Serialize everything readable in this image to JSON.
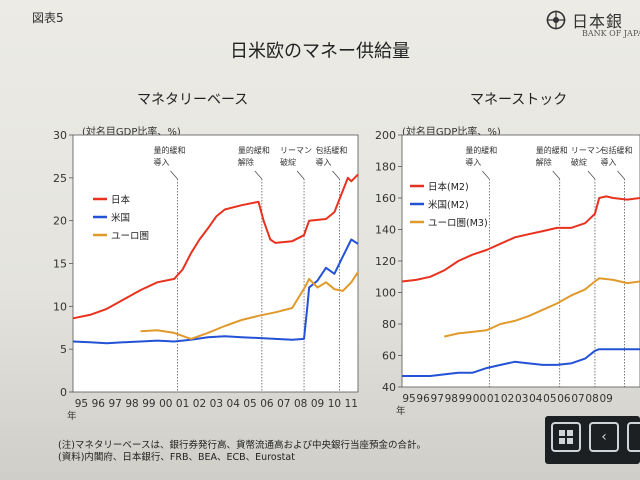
{
  "figure_label": "図表5",
  "logo": {
    "jp": "日本銀",
    "en": "BANK OF JAPAN"
  },
  "title": "日米欧のマネー供給量",
  "notes": [
    "(注)マネタリーベースは、銀行券発行高、貨幣流通高および中央銀行当座預金の合計。",
    "(資料)内閣府、日本銀行、FRB、BEA、ECB、Eurostat"
  ],
  "colors": {
    "japan": "#e8321f",
    "us": "#2452d6",
    "euro": "#e09a2c"
  },
  "nav": {
    "grid_icon": "grid-icon",
    "prev_icon": "chevron-left-icon",
    "next_icon": "chevron-right-icon",
    "prev_glyph": "‹",
    "next_glyph": "›"
  },
  "chart_data": [
    {
      "type": "line",
      "title": "マネタリーベース",
      "unit_label": "(対名目GDP比率、%)",
      "ylim": [
        0,
        30
      ],
      "yticks": [
        "0",
        "5",
        "10",
        "15",
        "20",
        "25",
        "30"
      ],
      "x_start": 1995,
      "x_end": 2011.9,
      "x_ticks": [
        "95",
        "96",
        "97",
        "98",
        "99",
        "00",
        "01",
        "02",
        "03",
        "04",
        "05",
        "06",
        "07",
        "08",
        "09",
        "10",
        "11"
      ],
      "x_unit": "年",
      "events": [
        {
          "label1": "量的緩和",
          "label2": "導入",
          "x": 2001.2
        },
        {
          "label1": "量的緩和",
          "label2": "解除",
          "x": 2006.2
        },
        {
          "label1": "リーマン",
          "label2": "破綻",
          "x": 2008.7
        },
        {
          "label1": "包括緩和",
          "label2": "導入",
          "x": 2010.8
        }
      ],
      "legend": [
        {
          "name": "日本",
          "series": 0
        },
        {
          "name": "米国",
          "series": 1
        },
        {
          "name": "ユーロ圏",
          "series": 2
        }
      ],
      "series": [
        {
          "name": "日本",
          "color": "#e8321f",
          "points": [
            [
              1995,
              8.6
            ],
            [
              1996,
              9.0
            ],
            [
              1997,
              9.7
            ],
            [
              1998,
              10.8
            ],
            [
              1999,
              11.9
            ],
            [
              2000,
              12.8
            ],
            [
              2001,
              13.2
            ],
            [
              2001.5,
              14.3
            ],
            [
              2002,
              16.2
            ],
            [
              2002.5,
              17.8
            ],
            [
              2003,
              19.1
            ],
            [
              2003.5,
              20.5
            ],
            [
              2004,
              21.3
            ],
            [
              2005,
              21.8
            ],
            [
              2006,
              22.2
            ],
            [
              2006.3,
              20.0
            ],
            [
              2006.7,
              17.8
            ],
            [
              2007,
              17.4
            ],
            [
              2008,
              17.6
            ],
            [
              2008.7,
              18.3
            ],
            [
              2009,
              20.0
            ],
            [
              2010,
              20.2
            ],
            [
              2010.5,
              21.0
            ],
            [
              2011,
              23.5
            ],
            [
              2011.3,
              25.0
            ],
            [
              2011.5,
              24.6
            ],
            [
              2011.9,
              25.4
            ]
          ]
        },
        {
          "name": "米国",
          "color": "#2452d6",
          "points": [
            [
              1995,
              5.9
            ],
            [
              1996,
              5.8
            ],
            [
              1997,
              5.7
            ],
            [
              1998,
              5.8
            ],
            [
              1999,
              5.9
            ],
            [
              2000,
              6.0
            ],
            [
              2001,
              5.9
            ],
            [
              2002,
              6.1
            ],
            [
              2003,
              6.4
            ],
            [
              2004,
              6.5
            ],
            [
              2005,
              6.4
            ],
            [
              2006,
              6.3
            ],
            [
              2007,
              6.2
            ],
            [
              2008,
              6.1
            ],
            [
              2008.7,
              6.2
            ],
            [
              2008.9,
              10.0
            ],
            [
              2009,
              12.2
            ],
            [
              2009.5,
              13.0
            ],
            [
              2010,
              14.5
            ],
            [
              2010.5,
              13.8
            ],
            [
              2011,
              15.8
            ],
            [
              2011.5,
              17.8
            ],
            [
              2011.9,
              17.3
            ]
          ]
        },
        {
          "name": "ユーロ圏",
          "color": "#e09a2c",
          "points": [
            [
              1999,
              7.1
            ],
            [
              2000,
              7.2
            ],
            [
              2001,
              6.9
            ],
            [
              2002,
              6.2
            ],
            [
              2003,
              6.9
            ],
            [
              2004,
              7.7
            ],
            [
              2005,
              8.4
            ],
            [
              2006,
              8.9
            ],
            [
              2007,
              9.3
            ],
            [
              2008,
              9.8
            ],
            [
              2008.8,
              12.4
            ],
            [
              2009,
              13.2
            ],
            [
              2009.5,
              12.2
            ],
            [
              2010,
              12.8
            ],
            [
              2010.5,
              12.0
            ],
            [
              2011,
              11.8
            ],
            [
              2011.5,
              12.8
            ],
            [
              2011.9,
              14.0
            ]
          ]
        }
      ]
    },
    {
      "type": "line",
      "title": "マネーストック",
      "unit_label": "(対名目GDP比率、%)",
      "ylim": [
        40,
        200
      ],
      "yticks": [
        "40",
        "60",
        "80",
        "100",
        "120",
        "140",
        "160",
        "180",
        "200"
      ],
      "x_start": 1995,
      "x_end": 2011.9,
      "x_ticks": [
        "95",
        "96",
        "97",
        "98",
        "99",
        "00",
        "01",
        "02",
        "03",
        "04",
        "05",
        "06",
        "07",
        "08",
        "09"
      ],
      "x_unit": "年",
      "events": [
        {
          "label1": "量的緩和",
          "label2": "導入",
          "x": 2001.2
        },
        {
          "label1": "量的緩和",
          "label2": "解除",
          "x": 2006.2
        },
        {
          "label1": "リーマン",
          "label2": "破綻",
          "x": 2008.7
        },
        {
          "label1": "包括緩和",
          "label2": "導入",
          "x": 2010.8
        }
      ],
      "legend": [
        {
          "name": "日本(M2)",
          "series": 0
        },
        {
          "name": "米国(M2)",
          "series": 1
        },
        {
          "name": "ユーロ圏(M3)",
          "series": 2
        }
      ],
      "series": [
        {
          "name": "日本(M2)",
          "color": "#e8321f",
          "points": [
            [
              1995,
              107
            ],
            [
              1996,
              108
            ],
            [
              1997,
              110
            ],
            [
              1998,
              114
            ],
            [
              1999,
              120
            ],
            [
              2000,
              124
            ],
            [
              2001,
              127
            ],
            [
              2002,
              131
            ],
            [
              2003,
              135
            ],
            [
              2004,
              137
            ],
            [
              2005,
              139
            ],
            [
              2006,
              141
            ],
            [
              2007,
              141
            ],
            [
              2008,
              144
            ],
            [
              2008.7,
              150
            ],
            [
              2009,
              160
            ],
            [
              2009.5,
              161
            ],
            [
              2010,
              160
            ],
            [
              2011,
              159
            ],
            [
              2011.9,
              160
            ]
          ]
        },
        {
          "name": "米国(M2)",
          "color": "#2452d6",
          "points": [
            [
              1995,
              47
            ],
            [
              1996,
              47
            ],
            [
              1997,
              47
            ],
            [
              1998,
              48
            ],
            [
              1999,
              49
            ],
            [
              2000,
              49
            ],
            [
              2001,
              52
            ],
            [
              2002,
              54
            ],
            [
              2003,
              56
            ],
            [
              2004,
              55
            ],
            [
              2005,
              54
            ],
            [
              2006,
              54
            ],
            [
              2007,
              55
            ],
            [
              2008,
              58
            ],
            [
              2008.7,
              63
            ],
            [
              2009,
              64
            ],
            [
              2011.9,
              64
            ]
          ]
        },
        {
          "name": "ユーロ圏(M3)",
          "color": "#e09a2c",
          "points": [
            [
              1998,
              72
            ],
            [
              1999,
              74
            ],
            [
              2000,
              75
            ],
            [
              2001,
              76
            ],
            [
              2002,
              80
            ],
            [
              2003,
              82
            ],
            [
              2004,
              85
            ],
            [
              2005,
              89
            ],
            [
              2006,
              93
            ],
            [
              2007,
              98
            ],
            [
              2008,
              102
            ],
            [
              2008.7,
              107
            ],
            [
              2009,
              109
            ],
            [
              2010,
              108
            ],
            [
              2011,
              106
            ],
            [
              2011.9,
              107
            ]
          ]
        }
      ]
    }
  ]
}
